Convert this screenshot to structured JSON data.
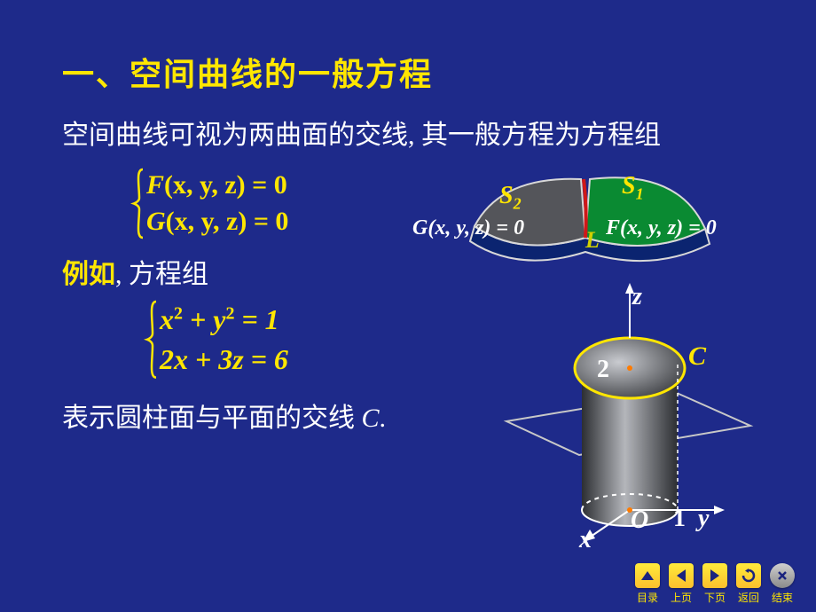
{
  "title": "一、空间曲线的一般方程",
  "line1": "空间曲线可视为两曲面的交线, 其一般方程为方程组",
  "general_system": {
    "eq1_lhs_func": "F",
    "eq1_args": "(x, y, z)",
    "eq1_rest": " = 0",
    "eq2_lhs_func": "G",
    "eq2_args": "(x, y, z)",
    "eq2_rest": " = 0",
    "brace_color": "#ffe600",
    "text_color": "#ffe600"
  },
  "example_label_strong": "例如",
  "example_label_rest": ", 方程组",
  "example_system": {
    "eq1_html": "x<sup>2</sup> + y<sup>2</sup> = 1",
    "eq2_html": "2x + 3z = 6",
    "text_color": "#ffe600"
  },
  "conclusion_pre": "表示圆柱面与平面的交线 ",
  "conclusion_c": "C",
  "conclusion_post": ".",
  "book": {
    "left_page_fill": "#54555a",
    "right_page_fill": "#0a8a32",
    "bottom_fill": "#0b2470",
    "spine_color": "#d01818",
    "outline": "#d8d8d8",
    "S1_label": "S",
    "S1_sub": "1",
    "S1_color": "#ffe600",
    "S2_label": "S",
    "S2_sub": "2",
    "S2_color": "#ffe600",
    "L_label": "L",
    "L_color": "#d0d000",
    "G_eq": "G(x, y, z) = 0",
    "F_eq": "F(x, y, z) = 0",
    "eq_color": "#ffffff"
  },
  "cylinder": {
    "axis_color": "#ffffff",
    "plane_outline": "#c8c8c8",
    "ellipse_color": "#ffe600",
    "ellipse_fill_top": "#aeb0b5",
    "ellipse_fill_dark": "#3a3c40",
    "cyl_side_light": "#9a9ca0",
    "cyl_side_dark": "#2c2e32",
    "origin_dot": "#ff7b00",
    "z_label": "z",
    "x_label": "x",
    "y_label": "y",
    "O_label": "O",
    "one_label": "1",
    "two_label": "2",
    "C_label": "C",
    "C_color": "#ffe600",
    "two_color": "#ffffff"
  },
  "nav": {
    "items": [
      {
        "icon": "up",
        "label": "目录"
      },
      {
        "icon": "left",
        "label": "上页"
      },
      {
        "icon": "right",
        "label": "下页"
      },
      {
        "icon": "back",
        "label": "返回"
      },
      {
        "icon": "close",
        "label": "结束"
      }
    ],
    "btn_bg": "#ffd54a",
    "arrow_color": "#1a237e",
    "close_bg": "#9e9e9e",
    "label_color": "#ffe600"
  },
  "colors": {
    "page_bg": "#1e2a8a",
    "title": "#ffe600",
    "body_text": "#ffffff"
  }
}
